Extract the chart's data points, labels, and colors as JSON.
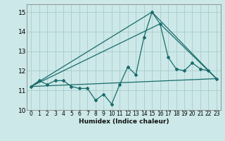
{
  "xlabel": "Humidex (Indice chaleur)",
  "ylabel": "",
  "xlim": [
    -0.5,
    23.5
  ],
  "ylim": [
    10.0,
    15.4
  ],
  "yticks": [
    10,
    11,
    12,
    13,
    14,
    15
  ],
  "xticks": [
    0,
    1,
    2,
    3,
    4,
    5,
    6,
    7,
    8,
    9,
    10,
    11,
    12,
    13,
    14,
    15,
    16,
    17,
    18,
    19,
    20,
    21,
    22,
    23
  ],
  "bg_color": "#cce8e8",
  "grid_color": "#aacccc",
  "line_color": "#1a6b6b",
  "series1_x": [
    0,
    1,
    2,
    3,
    4,
    5,
    6,
    7,
    8,
    9,
    10,
    11,
    12,
    13,
    14,
    15,
    16,
    17,
    18,
    19,
    20,
    21,
    22,
    23
  ],
  "series1_y": [
    11.2,
    11.5,
    11.3,
    11.5,
    11.5,
    11.2,
    11.1,
    11.1,
    10.5,
    10.8,
    10.3,
    11.3,
    12.2,
    11.8,
    13.7,
    15.0,
    14.4,
    12.7,
    12.1,
    12.0,
    12.4,
    12.1,
    12.0,
    11.6
  ],
  "series2_x": [
    0,
    23
  ],
  "series2_y": [
    11.2,
    11.6
  ],
  "series3_x": [
    0,
    15,
    23
  ],
  "series3_y": [
    11.2,
    15.0,
    11.6
  ],
  "series4_x": [
    0,
    16,
    23
  ],
  "series4_y": [
    11.2,
    14.4,
    11.6
  ]
}
